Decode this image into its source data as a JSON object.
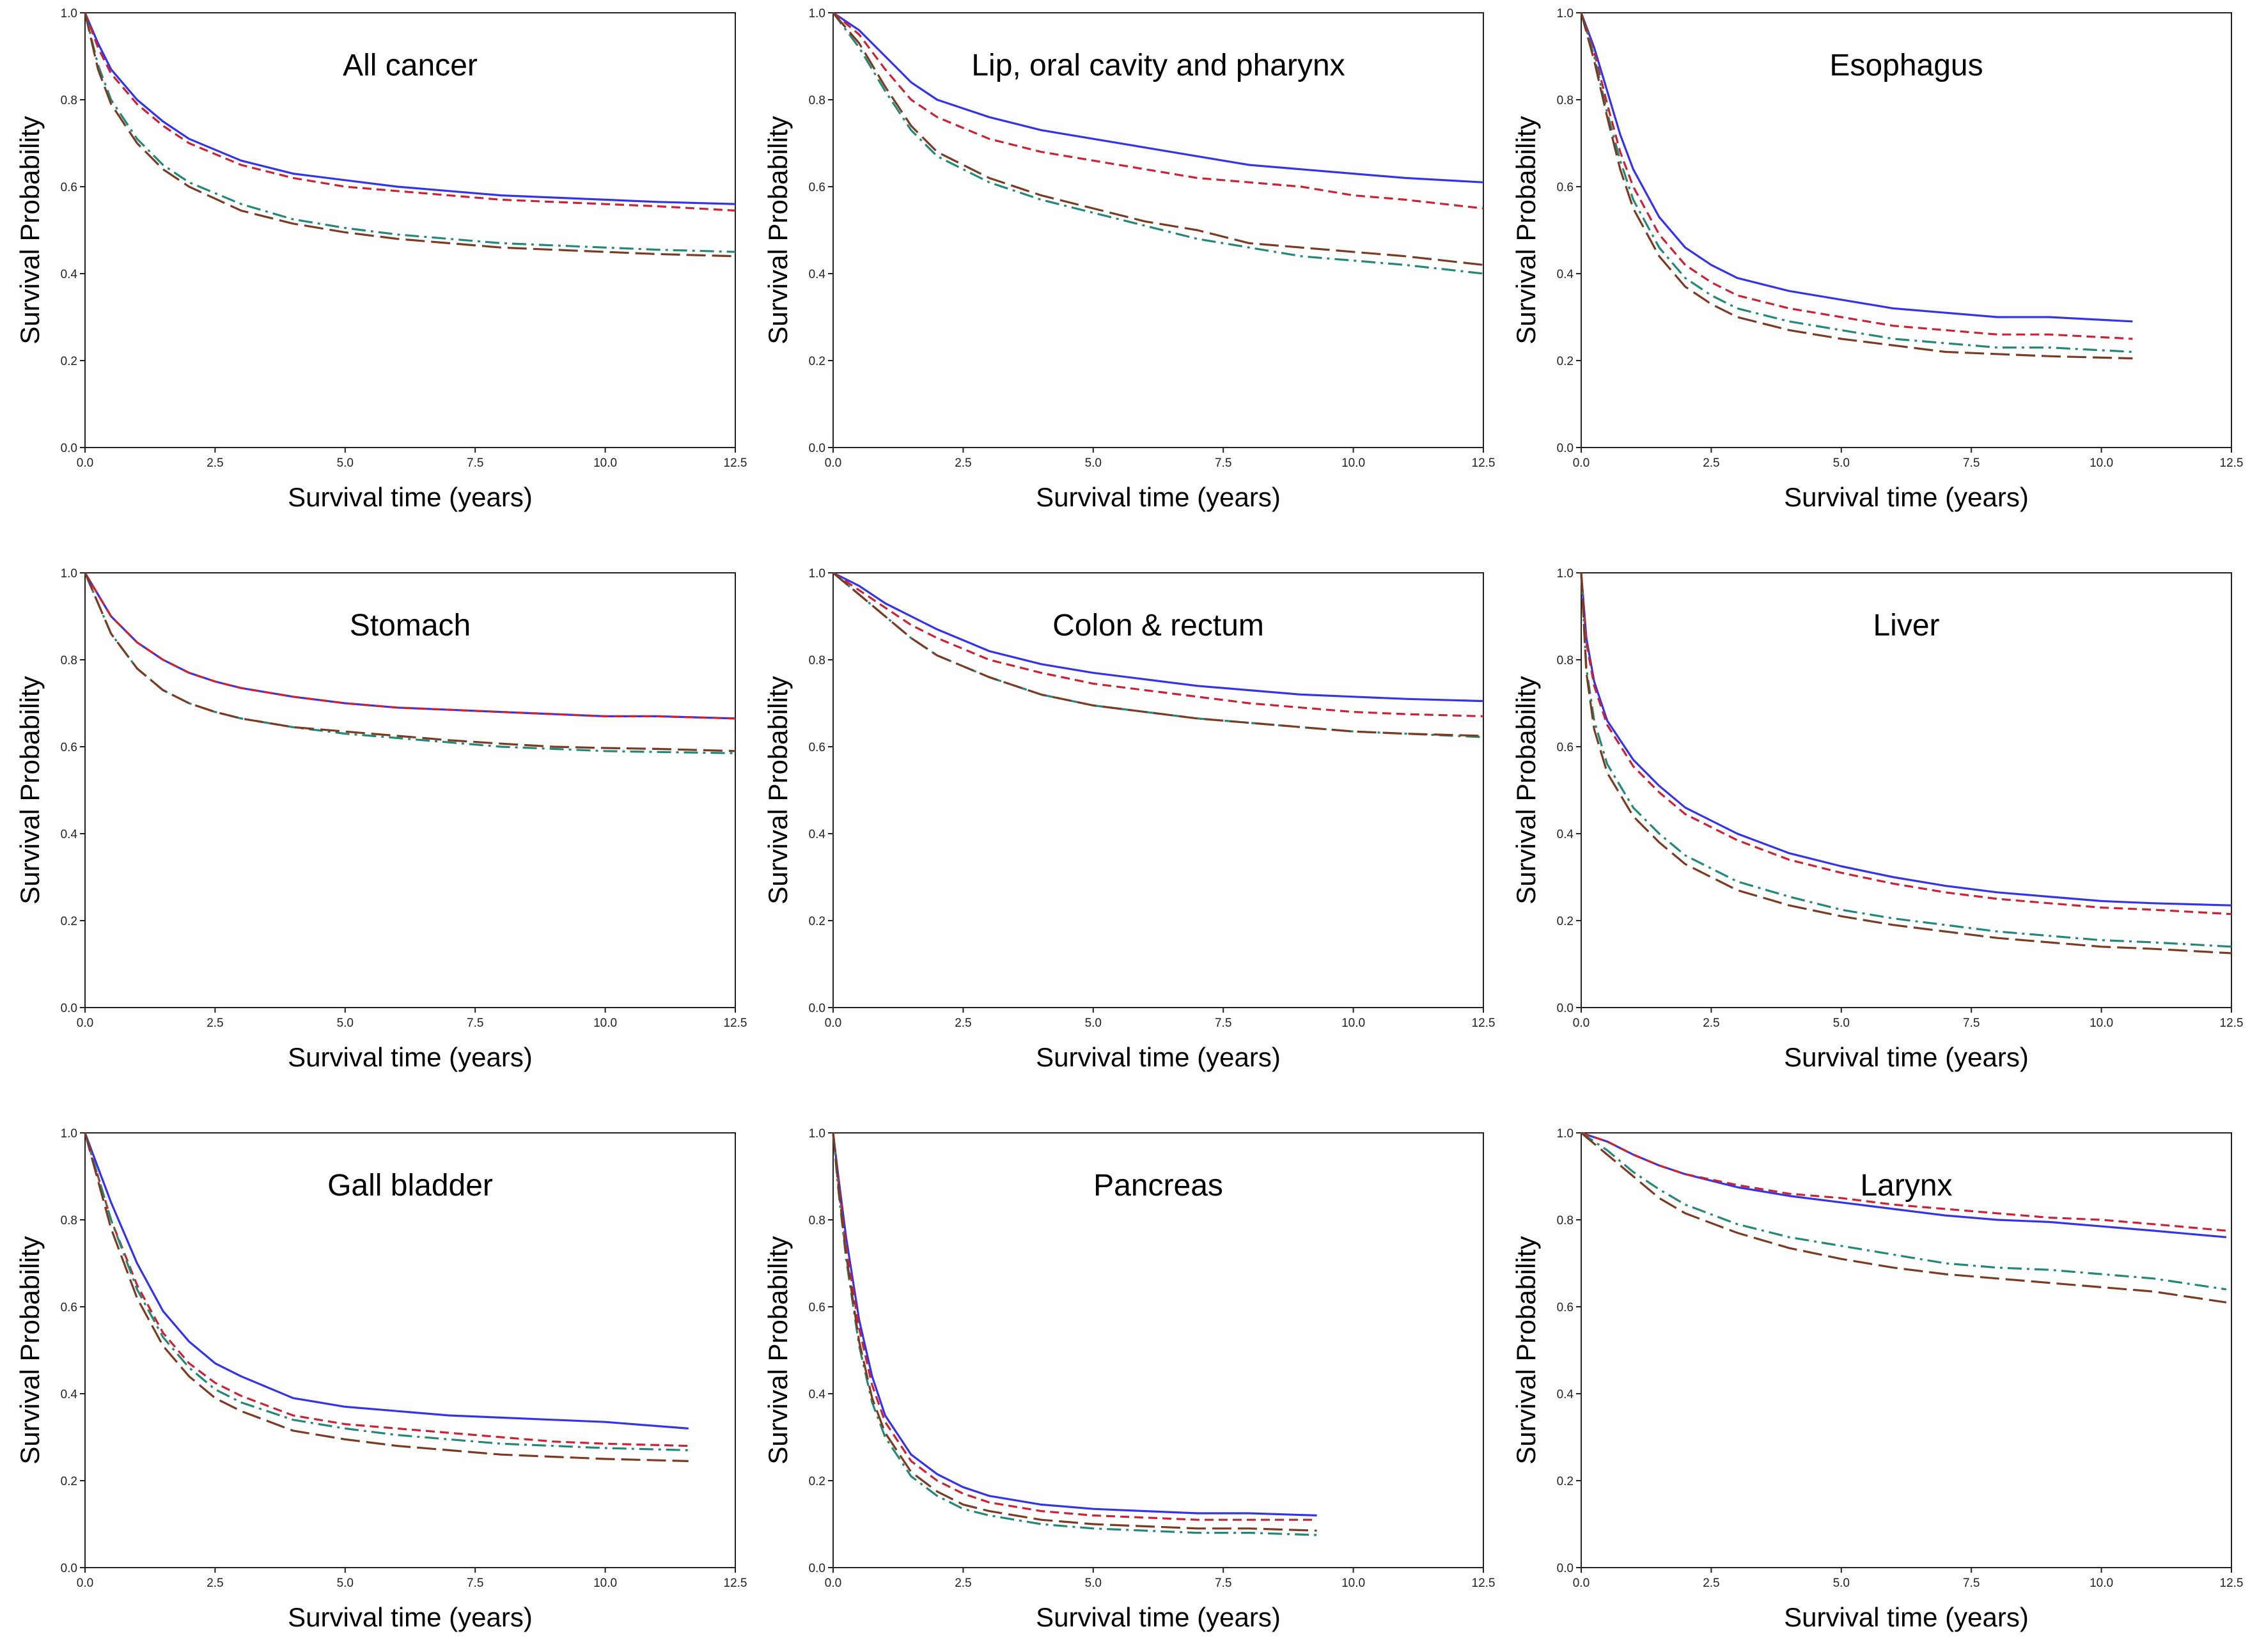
{
  "style": {
    "series": [
      {
        "color": "#3333ee",
        "dash": "solid"
      },
      {
        "color": "#cc2233",
        "dash": "dashed"
      },
      {
        "color": "#228877",
        "dash": "dash-dot"
      },
      {
        "color": "#7a3b22",
        "dash": "long-dash"
      }
    ]
  },
  "chart_data": [
    {
      "type": "line",
      "title": "All cancer",
      "xlabel": "Survival time (years)",
      "ylabel": "Survival Probability",
      "xlim": [
        0,
        12.5
      ],
      "ylim": [
        0,
        1
      ],
      "xticks": [
        "0.0",
        "2.5",
        "5.0",
        "7.5",
        "10.0",
        "12.5"
      ],
      "yticks": [
        "0.0",
        "0.2",
        "0.4",
        "0.6",
        "0.8",
        "1.0"
      ],
      "x": [
        0,
        0.25,
        0.5,
        1,
        1.5,
        2,
        3,
        4,
        5,
        6,
        7,
        8,
        9,
        10,
        11,
        12.5
      ],
      "series": [
        {
          "values": [
            1,
            0.93,
            0.87,
            0.8,
            0.75,
            0.71,
            0.66,
            0.63,
            0.615,
            0.6,
            0.59,
            0.58,
            0.575,
            0.57,
            0.565,
            0.56
          ]
        },
        {
          "values": [
            1,
            0.92,
            0.86,
            0.79,
            0.74,
            0.7,
            0.65,
            0.62,
            0.6,
            0.59,
            0.58,
            0.57,
            0.565,
            0.56,
            0.555,
            0.545
          ]
        },
        {
          "values": [
            1,
            0.88,
            0.8,
            0.71,
            0.65,
            0.61,
            0.56,
            0.525,
            0.505,
            0.49,
            0.48,
            0.47,
            0.465,
            0.46,
            0.455,
            0.45
          ]
        },
        {
          "values": [
            1,
            0.87,
            0.79,
            0.7,
            0.64,
            0.6,
            0.545,
            0.515,
            0.495,
            0.48,
            0.47,
            0.46,
            0.455,
            0.45,
            0.445,
            0.44
          ]
        }
      ]
    },
    {
      "type": "line",
      "title": "Lip, oral cavity and pharynx",
      "xlabel": "Survival time (years)",
      "ylabel": "Survival Probability",
      "xlim": [
        0,
        12.5
      ],
      "ylim": [
        0,
        1
      ],
      "xticks": [
        "0.0",
        "2.5",
        "5.0",
        "7.5",
        "10.0",
        "12.5"
      ],
      "yticks": [
        "0.0",
        "0.2",
        "0.4",
        "0.6",
        "0.8",
        "1.0"
      ],
      "x": [
        0,
        0.5,
        1,
        1.5,
        2,
        3,
        4,
        5,
        6,
        7,
        8,
        9,
        10,
        11,
        12.5
      ],
      "series": [
        {
          "values": [
            1,
            0.96,
            0.9,
            0.84,
            0.8,
            0.76,
            0.73,
            0.71,
            0.69,
            0.67,
            0.65,
            0.64,
            0.63,
            0.62,
            0.61
          ]
        },
        {
          "values": [
            1,
            0.95,
            0.87,
            0.8,
            0.76,
            0.71,
            0.68,
            0.66,
            0.64,
            0.62,
            0.61,
            0.6,
            0.58,
            0.57,
            0.55
          ]
        },
        {
          "values": [
            1,
            0.92,
            0.82,
            0.73,
            0.67,
            0.61,
            0.57,
            0.54,
            0.51,
            0.48,
            0.46,
            0.44,
            0.43,
            0.42,
            0.4
          ]
        },
        {
          "values": [
            1,
            0.93,
            0.83,
            0.74,
            0.68,
            0.62,
            0.58,
            0.55,
            0.52,
            0.5,
            0.47,
            0.46,
            0.45,
            0.44,
            0.42
          ]
        }
      ]
    },
    {
      "type": "line",
      "title": "Esophagus",
      "xlabel": "Survival time (years)",
      "ylabel": "Survival Probability",
      "xlim": [
        0,
        12.5
      ],
      "ylim": [
        0,
        1
      ],
      "xticks": [
        "0.0",
        "2.5",
        "5.0",
        "7.5",
        "10.0",
        "12.5"
      ],
      "yticks": [
        "0.0",
        "0.2",
        "0.4",
        "0.6",
        "0.8",
        "1.0"
      ],
      "x": [
        0,
        0.25,
        0.5,
        0.75,
        1,
        1.5,
        2,
        2.5,
        3,
        4,
        5,
        6,
        7,
        8,
        9,
        10.6
      ],
      "series": [
        {
          "values": [
            1,
            0.92,
            0.82,
            0.72,
            0.64,
            0.53,
            0.46,
            0.42,
            0.39,
            0.36,
            0.34,
            0.32,
            0.31,
            0.3,
            0.3,
            0.29
          ]
        },
        {
          "values": [
            1,
            0.91,
            0.79,
            0.68,
            0.6,
            0.49,
            0.42,
            0.38,
            0.35,
            0.32,
            0.3,
            0.28,
            0.27,
            0.26,
            0.26,
            0.25
          ]
        },
        {
          "values": [
            1,
            0.9,
            0.77,
            0.66,
            0.57,
            0.46,
            0.39,
            0.35,
            0.32,
            0.29,
            0.27,
            0.25,
            0.24,
            0.23,
            0.23,
            0.22
          ]
        },
        {
          "values": [
            1,
            0.89,
            0.76,
            0.64,
            0.55,
            0.44,
            0.37,
            0.33,
            0.3,
            0.27,
            0.25,
            0.235,
            0.22,
            0.215,
            0.21,
            0.205
          ]
        }
      ]
    },
    {
      "type": "line",
      "title": "Stomach",
      "xlabel": "Survival time (years)",
      "ylabel": "Survival Probability",
      "xlim": [
        0,
        12.5
      ],
      "ylim": [
        0,
        1
      ],
      "xticks": [
        "0.0",
        "2.5",
        "5.0",
        "7.5",
        "10.0",
        "12.5"
      ],
      "yticks": [
        "0.0",
        "0.2",
        "0.4",
        "0.6",
        "0.8",
        "1.0"
      ],
      "x": [
        0,
        0.5,
        1,
        1.5,
        2,
        2.5,
        3,
        4,
        5,
        6,
        7,
        8,
        9,
        10,
        11,
        12.5
      ],
      "series": [
        {
          "values": [
            1,
            0.9,
            0.84,
            0.8,
            0.77,
            0.75,
            0.735,
            0.715,
            0.7,
            0.69,
            0.685,
            0.68,
            0.675,
            0.67,
            0.67,
            0.665
          ]
        },
        {
          "values": [
            1,
            0.9,
            0.84,
            0.8,
            0.77,
            0.75,
            0.735,
            0.715,
            0.7,
            0.69,
            0.685,
            0.68,
            0.675,
            0.67,
            0.67,
            0.665
          ]
        },
        {
          "values": [
            1,
            0.86,
            0.78,
            0.73,
            0.7,
            0.68,
            0.665,
            0.645,
            0.63,
            0.62,
            0.61,
            0.6,
            0.595,
            0.59,
            0.588,
            0.585
          ]
        },
        {
          "values": [
            1,
            0.86,
            0.78,
            0.73,
            0.7,
            0.68,
            0.665,
            0.645,
            0.635,
            0.625,
            0.615,
            0.607,
            0.6,
            0.597,
            0.595,
            0.59
          ]
        }
      ]
    },
    {
      "type": "line",
      "title": "Colon & rectum",
      "xlabel": "Survival time (years)",
      "ylabel": "Survival Probability",
      "xlim": [
        0,
        12.5
      ],
      "ylim": [
        0,
        1
      ],
      "xticks": [
        "0.0",
        "2.5",
        "5.0",
        "7.5",
        "10.0",
        "12.5"
      ],
      "yticks": [
        "0.0",
        "0.2",
        "0.4",
        "0.6",
        "0.8",
        "1.0"
      ],
      "x": [
        0,
        0.5,
        1,
        1.5,
        2,
        3,
        4,
        5,
        6,
        7,
        8,
        9,
        10,
        11,
        12.5
      ],
      "series": [
        {
          "values": [
            1,
            0.97,
            0.93,
            0.9,
            0.87,
            0.82,
            0.79,
            0.77,
            0.755,
            0.74,
            0.73,
            0.72,
            0.715,
            0.71,
            0.705
          ]
        },
        {
          "values": [
            1,
            0.96,
            0.92,
            0.88,
            0.85,
            0.8,
            0.77,
            0.745,
            0.73,
            0.715,
            0.7,
            0.69,
            0.68,
            0.675,
            0.67
          ]
        },
        {
          "values": [
            1,
            0.95,
            0.9,
            0.85,
            0.81,
            0.76,
            0.72,
            0.695,
            0.68,
            0.665,
            0.655,
            0.645,
            0.635,
            0.63,
            0.622
          ]
        },
        {
          "values": [
            1,
            0.95,
            0.9,
            0.85,
            0.81,
            0.76,
            0.72,
            0.695,
            0.68,
            0.665,
            0.655,
            0.645,
            0.635,
            0.63,
            0.625
          ]
        }
      ]
    },
    {
      "type": "line",
      "title": "Liver",
      "xlabel": "Survival time (years)",
      "ylabel": "Survival Probability",
      "xlim": [
        0,
        12.5
      ],
      "ylim": [
        0,
        1
      ],
      "xticks": [
        "0.0",
        "2.5",
        "5.0",
        "7.5",
        "10.0",
        "12.5"
      ],
      "yticks": [
        "0.0",
        "0.2",
        "0.4",
        "0.6",
        "0.8",
        "1.0"
      ],
      "x": [
        0,
        0.1,
        0.25,
        0.5,
        1,
        1.5,
        2,
        3,
        4,
        5,
        6,
        7,
        8,
        9,
        10,
        11,
        12.5
      ],
      "series": [
        {
          "values": [
            1,
            0.85,
            0.75,
            0.66,
            0.57,
            0.51,
            0.46,
            0.4,
            0.355,
            0.325,
            0.3,
            0.28,
            0.265,
            0.255,
            0.245,
            0.24,
            0.235
          ]
        },
        {
          "values": [
            1,
            0.84,
            0.74,
            0.65,
            0.555,
            0.495,
            0.445,
            0.385,
            0.34,
            0.31,
            0.285,
            0.265,
            0.25,
            0.24,
            0.23,
            0.225,
            0.215
          ]
        },
        {
          "values": [
            1,
            0.78,
            0.66,
            0.56,
            0.46,
            0.4,
            0.35,
            0.29,
            0.255,
            0.225,
            0.205,
            0.19,
            0.175,
            0.165,
            0.155,
            0.15,
            0.14
          ]
        },
        {
          "values": [
            1,
            0.77,
            0.64,
            0.54,
            0.44,
            0.38,
            0.33,
            0.27,
            0.235,
            0.21,
            0.19,
            0.175,
            0.16,
            0.15,
            0.14,
            0.135,
            0.125
          ]
        }
      ]
    },
    {
      "type": "line",
      "title": "Gall bladder",
      "xlabel": "Survival time (years)",
      "ylabel": "Survival Probability",
      "xlim": [
        0,
        12.5
      ],
      "ylim": [
        0,
        1
      ],
      "xticks": [
        "0.0",
        "2.5",
        "5.0",
        "7.5",
        "10.0",
        "12.5"
      ],
      "yticks": [
        "0.0",
        "0.2",
        "0.4",
        "0.6",
        "0.8",
        "1.0"
      ],
      "x": [
        0,
        0.25,
        0.5,
        1,
        1.5,
        2,
        2.5,
        3,
        4,
        5,
        6,
        7,
        8,
        9,
        10,
        11.6
      ],
      "series": [
        {
          "values": [
            1,
            0.92,
            0.84,
            0.7,
            0.59,
            0.52,
            0.47,
            0.44,
            0.39,
            0.37,
            0.36,
            0.35,
            0.345,
            0.34,
            0.335,
            0.32
          ]
        },
        {
          "values": [
            1,
            0.9,
            0.8,
            0.65,
            0.54,
            0.47,
            0.425,
            0.395,
            0.35,
            0.33,
            0.32,
            0.31,
            0.3,
            0.29,
            0.285,
            0.28
          ]
        },
        {
          "values": [
            1,
            0.9,
            0.8,
            0.64,
            0.53,
            0.46,
            0.41,
            0.38,
            0.34,
            0.32,
            0.305,
            0.295,
            0.285,
            0.28,
            0.275,
            0.27
          ]
        },
        {
          "values": [
            1,
            0.89,
            0.78,
            0.62,
            0.51,
            0.44,
            0.39,
            0.36,
            0.315,
            0.295,
            0.28,
            0.27,
            0.26,
            0.255,
            0.25,
            0.245
          ]
        }
      ]
    },
    {
      "type": "line",
      "title": "Pancreas",
      "xlabel": "Survival time (years)",
      "ylabel": "Survival Probability",
      "xlim": [
        0,
        12.5
      ],
      "ylim": [
        0,
        1
      ],
      "xticks": [
        "0.0",
        "2.5",
        "5.0",
        "7.5",
        "10.0",
        "12.5"
      ],
      "yticks": [
        "0.0",
        "0.2",
        "0.4",
        "0.6",
        "0.8",
        "1.0"
      ],
      "x": [
        0,
        0.1,
        0.25,
        0.5,
        0.75,
        1,
        1.5,
        2,
        2.5,
        3,
        4,
        5,
        6,
        7,
        8,
        9.3
      ],
      "series": [
        {
          "values": [
            1,
            0.9,
            0.76,
            0.57,
            0.44,
            0.35,
            0.26,
            0.215,
            0.185,
            0.165,
            0.145,
            0.135,
            0.13,
            0.125,
            0.125,
            0.12
          ]
        },
        {
          "values": [
            1,
            0.89,
            0.74,
            0.55,
            0.42,
            0.335,
            0.245,
            0.2,
            0.17,
            0.15,
            0.13,
            0.12,
            0.115,
            0.11,
            0.11,
            0.11
          ]
        },
        {
          "values": [
            1,
            0.87,
            0.71,
            0.51,
            0.38,
            0.3,
            0.21,
            0.165,
            0.135,
            0.12,
            0.1,
            0.09,
            0.085,
            0.08,
            0.08,
            0.075
          ]
        },
        {
          "values": [
            1,
            0.88,
            0.72,
            0.52,
            0.39,
            0.31,
            0.22,
            0.175,
            0.145,
            0.13,
            0.11,
            0.1,
            0.095,
            0.09,
            0.09,
            0.085
          ]
        }
      ]
    },
    {
      "type": "line",
      "title": "Larynx",
      "xlabel": "Survival time (years)",
      "ylabel": "Survival Probability",
      "xlim": [
        0,
        12.5
      ],
      "ylim": [
        0,
        1
      ],
      "xticks": [
        "0.0",
        "2.5",
        "5.0",
        "7.5",
        "10.0",
        "12.5"
      ],
      "yticks": [
        "0.0",
        "0.2",
        "0.4",
        "0.6",
        "0.8",
        "1.0"
      ],
      "x": [
        0,
        0.5,
        1,
        1.5,
        2,
        3,
        4,
        5,
        6,
        7,
        8,
        9,
        10,
        11,
        12.4
      ],
      "series": [
        {
          "values": [
            1,
            0.98,
            0.95,
            0.925,
            0.905,
            0.875,
            0.855,
            0.84,
            0.825,
            0.81,
            0.8,
            0.795,
            0.785,
            0.775,
            0.76
          ]
        },
        {
          "values": [
            1,
            0.98,
            0.95,
            0.925,
            0.905,
            0.88,
            0.86,
            0.85,
            0.835,
            0.825,
            0.815,
            0.805,
            0.8,
            0.79,
            0.775
          ]
        },
        {
          "values": [
            1,
            0.96,
            0.91,
            0.87,
            0.835,
            0.79,
            0.76,
            0.74,
            0.72,
            0.7,
            0.69,
            0.685,
            0.675,
            0.665,
            0.64
          ]
        },
        {
          "values": [
            1,
            0.95,
            0.9,
            0.85,
            0.815,
            0.77,
            0.735,
            0.71,
            0.69,
            0.675,
            0.665,
            0.655,
            0.645,
            0.635,
            0.61
          ]
        }
      ]
    }
  ]
}
